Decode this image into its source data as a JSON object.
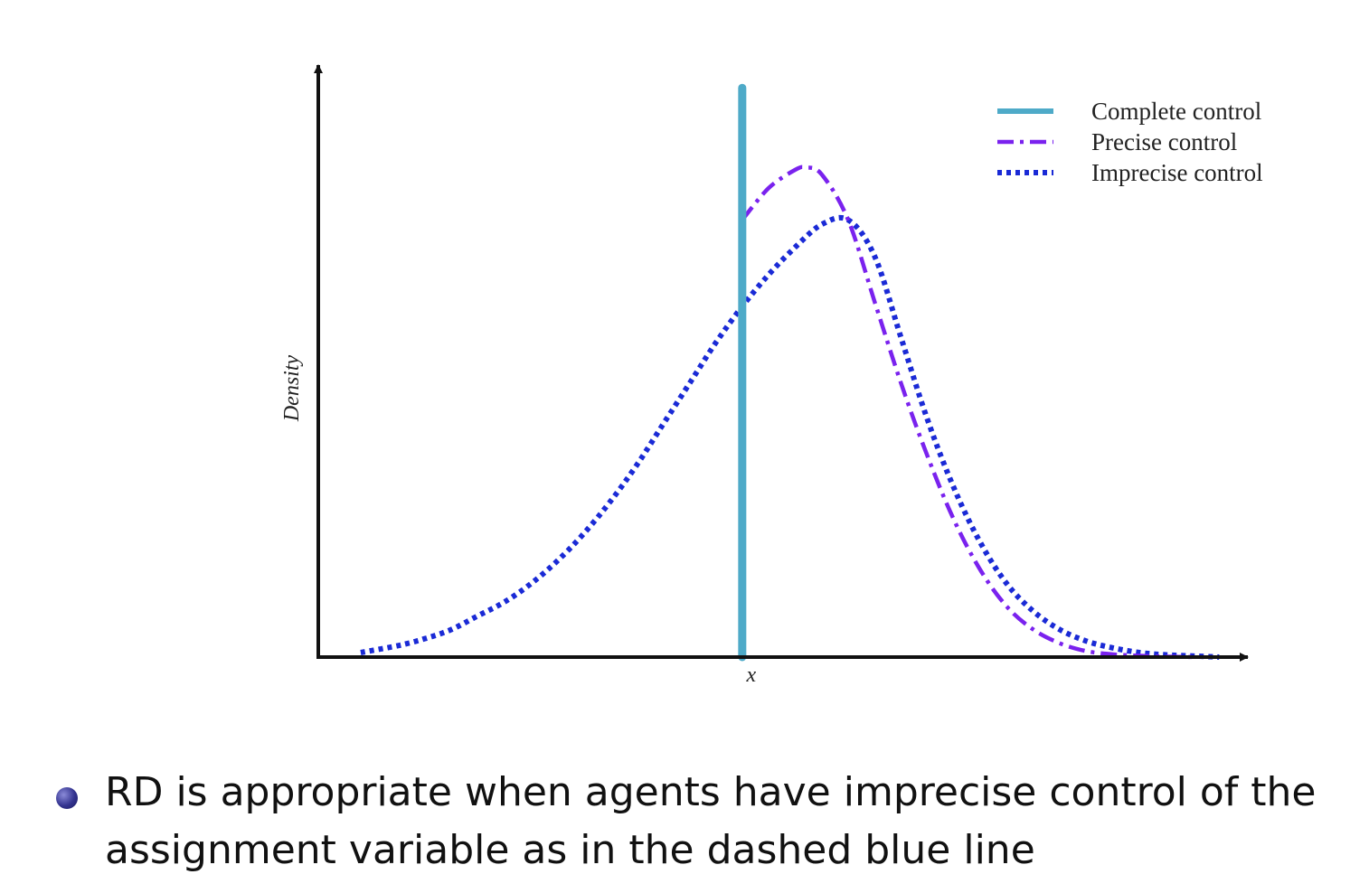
{
  "chart_data": {
    "type": "line",
    "title": "",
    "xlabel": "x",
    "ylabel": "Density",
    "xlim": [
      -4,
      4.6
    ],
    "ylim": [
      0,
      1.3
    ],
    "cutoff": 0,
    "legend_position": "top-right",
    "series": [
      {
        "name": "Complete control",
        "style": "solid",
        "color": "#4eaac8",
        "x": [
          0,
          0
        ],
        "y": [
          0,
          1.25
        ]
      },
      {
        "name": "Precise control",
        "style": "dash-dot",
        "color": "#7a22ee",
        "x": [
          0,
          0.25,
          0.5,
          0.6,
          0.75,
          1.0,
          1.25,
          1.5,
          1.75,
          2.0,
          2.25,
          2.5,
          2.75,
          3.0,
          3.25,
          3.5,
          3.75,
          4.0,
          4.3
        ],
        "y": [
          0.96,
          1.03,
          1.07,
          1.075,
          1.06,
          0.96,
          0.78,
          0.6,
          0.44,
          0.3,
          0.19,
          0.11,
          0.06,
          0.03,
          0.013,
          0.006,
          0.003,
          0.001,
          0.0
        ]
      },
      {
        "name": "Imprecise control",
        "style": "dotted",
        "color": "#1a2ad6",
        "x": [
          -3.6,
          -3.25,
          -3.0,
          -2.75,
          -2.5,
          -2.25,
          -2.0,
          -1.75,
          -1.5,
          -1.25,
          -1.0,
          -0.75,
          -0.5,
          -0.25,
          0.0,
          0.25,
          0.5,
          0.75,
          1.0,
          1.25,
          1.5,
          1.75,
          2.0,
          2.25,
          2.5,
          2.75,
          3.0,
          3.25,
          3.5,
          3.75,
          4.0,
          4.3,
          4.5
        ],
        "y": [
          0.01,
          0.025,
          0.04,
          0.06,
          0.09,
          0.12,
          0.16,
          0.21,
          0.27,
          0.34,
          0.42,
          0.51,
          0.6,
          0.69,
          0.77,
          0.84,
          0.9,
          0.95,
          0.96,
          0.88,
          0.7,
          0.52,
          0.37,
          0.25,
          0.16,
          0.1,
          0.06,
          0.035,
          0.02,
          0.01,
          0.005,
          0.002,
          0.0
        ]
      }
    ]
  },
  "bullet": {
    "text": "RD is appropriate when agents have imprecise control of the assignment variable as in the dashed blue line"
  }
}
